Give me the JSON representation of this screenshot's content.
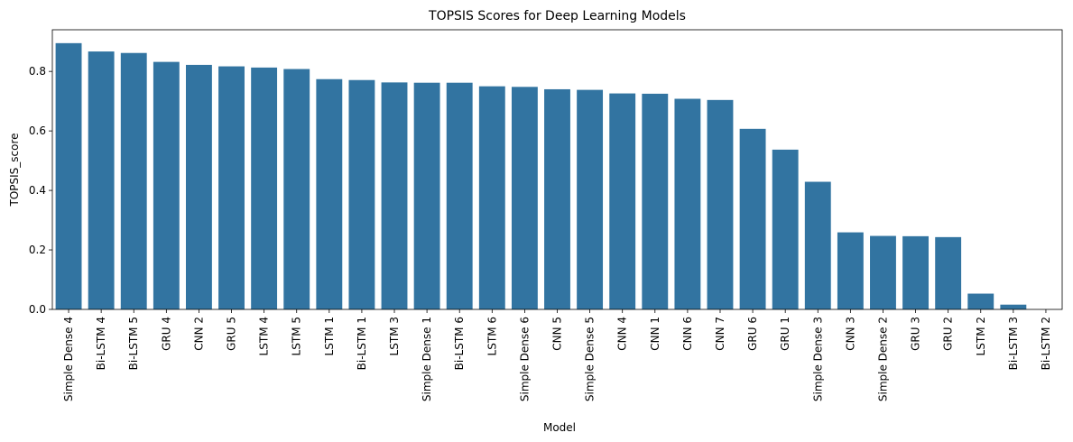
{
  "chart_data": {
    "type": "bar",
    "title": "TOPSIS Scores for Deep Learning Models",
    "xlabel": "Model",
    "ylabel": "TOPSIS_score",
    "ylim": [
      0,
      0.94
    ],
    "yticks": [
      "0.0",
      "0.2",
      "0.4",
      "0.6",
      "0.8"
    ],
    "grid": false,
    "bar_color": "#3274a1",
    "categories": [
      "Simple Dense 4",
      "Bi-LSTM 4",
      "Bi-LSTM 5",
      "GRU 4",
      "CNN 2",
      "GRU 5",
      "LSTM 4",
      "LSTM 5",
      "LSTM 1",
      "Bi-LSTM 1",
      "LSTM 3",
      "Simple Dense 1",
      "Bi-LSTM 6",
      "LSTM 6",
      "Simple Dense 6",
      "CNN 5",
      "Simple Dense 5",
      "CNN 4",
      "CNN 1",
      "CNN 6",
      "CNN 7",
      "GRU 6",
      "GRU 1",
      "Simple Dense 3",
      "CNN 3",
      "Simple Dense 2",
      "GRU 3",
      "GRU 2",
      "LSTM 2",
      "Bi-LSTM 3",
      "Bi-LSTM 2"
    ],
    "values": [
      0.895,
      0.867,
      0.862,
      0.832,
      0.822,
      0.817,
      0.813,
      0.808,
      0.774,
      0.771,
      0.763,
      0.762,
      0.762,
      0.75,
      0.748,
      0.74,
      0.738,
      0.726,
      0.725,
      0.708,
      0.704,
      0.607,
      0.537,
      0.429,
      0.259,
      0.247,
      0.246,
      0.243,
      0.053,
      0.016,
      0.0
    ]
  }
}
